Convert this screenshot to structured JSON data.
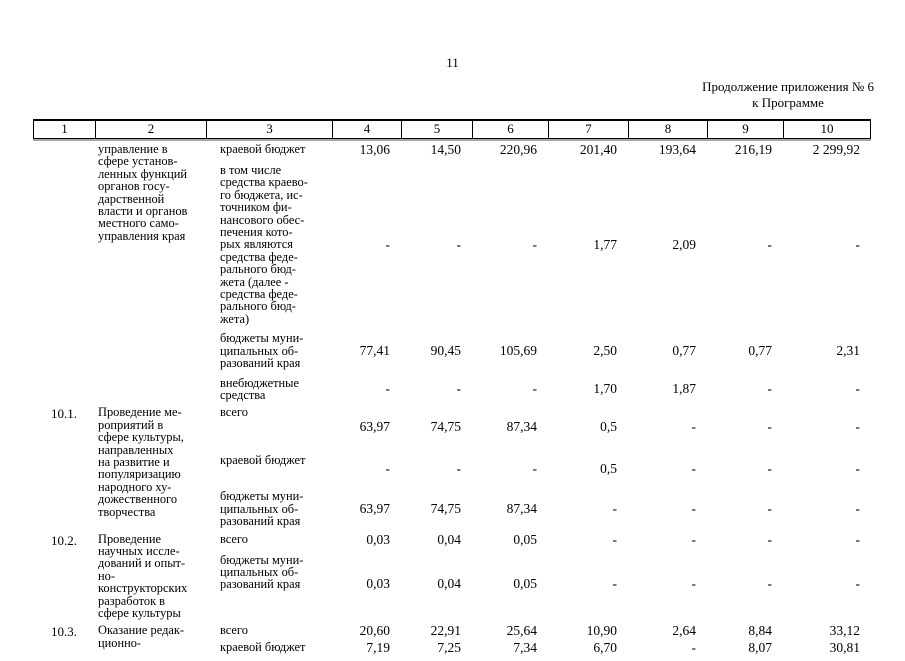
{
  "page": {
    "number": "11",
    "continuation_line1": "Продолжение приложения № 6",
    "continuation_line2": "к Программе"
  },
  "table": {
    "header": [
      "1",
      "2",
      "3",
      "4",
      "5",
      "6",
      "7",
      "8",
      "9",
      "10"
    ],
    "rows": [
      {
        "num": "",
        "name": "управление в\nсфере установ-\nленных функций\nорганов госу-\nдарственной\nвласти и органов\nместного само-\nуправления края",
        "subrows": [
          {
            "source": "краевой бюджет",
            "values": [
              "13,06",
              "14,50",
              "220,96",
              "201,40",
              "193,64",
              "216,19",
              "2 299,92"
            ]
          },
          {
            "source": "в том числе\nсредства краево-\nго бюджета, ис-\nточником фи-\nнансового обес-\nпечения кото-\nрых являются\nсредства феде-\nрального бюд-\nжета (далее -\nсредства феде-\nрального бюд-\nжета)",
            "values": [
              "-",
              "-",
              "-",
              "1,77",
              "2,09",
              "-",
              "-"
            ]
          },
          {
            "source": "бюджеты муни-\nципальных об-\nразований края",
            "values": [
              "77,41",
              "90,45",
              "105,69",
              "2,50",
              "0,77",
              "0,77",
              "2,31"
            ]
          },
          {
            "source": "внебюджетные\nсредства",
            "values": [
              "-",
              "-",
              "-",
              "1,70",
              "1,87",
              "-",
              "-"
            ]
          }
        ]
      },
      {
        "num": "10.1.",
        "name": "Проведение ме-\nроприятий в\nсфере культуры,\nнаправленных\nна развитие и\nпопуляризацию\nнародного ху-\nдожественного\nтворчества",
        "subrows": [
          {
            "source": "всего",
            "values": [
              "63,97",
              "74,75",
              "87,34",
              "0,5",
              "-",
              "-",
              "-"
            ]
          },
          {
            "source": "краевой бюджет",
            "values": [
              "-",
              "-",
              "-",
              "0,5",
              "-",
              "-",
              "-"
            ]
          },
          {
            "source": "бюджеты муни-\nципальных об-\nразований края",
            "values": [
              "63,97",
              "74,75",
              "87,34",
              "-",
              "-",
              "-",
              "-"
            ]
          }
        ]
      },
      {
        "num": "10.2.",
        "name": "Проведение\nнаучных иссле-\nдований и опыт-\nно-\nконструкторских\nразработок в\nсфере культуры",
        "subrows": [
          {
            "source": "всего",
            "values": [
              "0,03",
              "0,04",
              "0,05",
              "-",
              "-",
              "-",
              "-"
            ]
          },
          {
            "source": "бюджеты муни-\nципальных об-\nразований края",
            "values": [
              "0,03",
              "0,04",
              "0,05",
              "-",
              "-",
              "-",
              "-"
            ]
          }
        ]
      },
      {
        "num": "10.3.",
        "name": "Оказание редак-\nционно-",
        "subrows": [
          {
            "source": "всего",
            "values": [
              "20,60",
              "22,91",
              "25,64",
              "10,90",
              "2,64",
              "8,84",
              "33,12"
            ]
          },
          {
            "source": "краевой бюджет",
            "values": [
              "7,19",
              "7,25",
              "7,34",
              "6,70",
              "-",
              "8,07",
              "30,81"
            ]
          }
        ]
      }
    ]
  }
}
